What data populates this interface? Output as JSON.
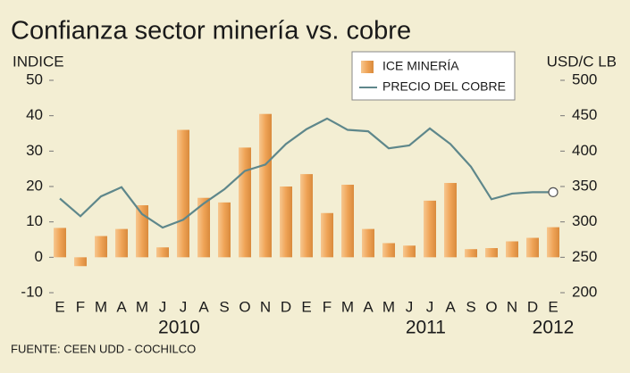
{
  "chart_data": {
    "type": "bar-line",
    "title": "Confianza sector minería vs. cobre",
    "y_label": "INDICE",
    "y2_label": "USD/C LB",
    "source": "FUENTE: CEEN UDD - COCHILCO",
    "categories": [
      "E",
      "F",
      "M",
      "A",
      "M",
      "J",
      "J",
      "A",
      "S",
      "O",
      "N",
      "D",
      "E",
      "F",
      "M",
      "A",
      "M",
      "J",
      "J",
      "A",
      "S",
      "O",
      "N",
      "D",
      "E"
    ],
    "year_labels": [
      "2010",
      "2011",
      "2012"
    ],
    "series": [
      {
        "name": "ICE MINERÍA",
        "type": "bar",
        "color": "#efa457",
        "values": [
          8.3,
          -2.5,
          6,
          8,
          14.7,
          2.8,
          36,
          16.8,
          15.5,
          31,
          40.5,
          20,
          23.5,
          12.5,
          20.5,
          8,
          4,
          3.3,
          16,
          21,
          2.3,
          2.6,
          4.5,
          5.5,
          8.5
        ]
      },
      {
        "name": "PRECIO DEL COBRE",
        "type": "line",
        "axis": "y2",
        "color": "#5e878b",
        "values": [
          333,
          308,
          336,
          349,
          311,
          292,
          303,
          326,
          346,
          372,
          381,
          410,
          431,
          446,
          430,
          428,
          404,
          408,
          432,
          410,
          378,
          332,
          340,
          342,
          342
        ]
      }
    ],
    "ylim": [
      -10,
      50
    ],
    "yticks": [
      -10,
      0,
      10,
      20,
      30,
      40,
      50
    ],
    "y2lim": [
      200,
      500
    ],
    "y2ticks": [
      200,
      250,
      300,
      350,
      400,
      450,
      500
    ]
  }
}
